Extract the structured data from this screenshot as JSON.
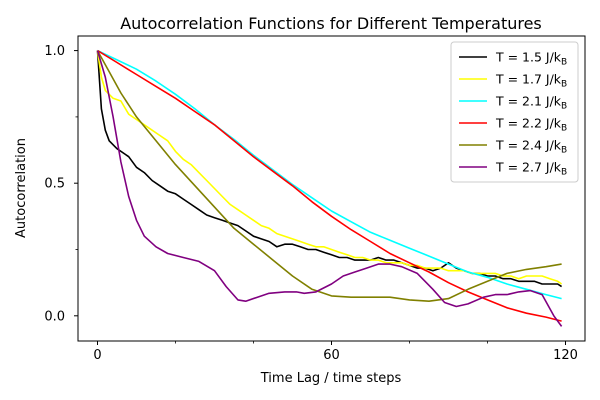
{
  "chart_data": {
    "type": "line",
    "title": "Autocorrelation Functions for Different Temperatures",
    "xlabel": "Time Lag / time steps",
    "ylabel": "Autocorrelation",
    "xlim": [
      -5,
      125
    ],
    "ylim": [
      -0.095,
      1.055
    ],
    "x_ticks": [
      0,
      60,
      120
    ],
    "x_minor_ticks": [
      20,
      40,
      80,
      100
    ],
    "y_ticks": [
      0.0,
      0.5,
      1.0
    ],
    "y_tick_labels": [
      "0.0",
      "0.5",
      "1.0"
    ],
    "y_minor_ticks": [
      0.25,
      0.75
    ],
    "grid": false,
    "legend_position": "top-right",
    "series": [
      {
        "name": "T = 1.5 J/kB",
        "label_main": "T = 1.5 J/k",
        "label_sub": "B",
        "color": "#000000",
        "points": [
          [
            0,
            1.0
          ],
          [
            1,
            0.78
          ],
          [
            2,
            0.7
          ],
          [
            3,
            0.66
          ],
          [
            5,
            0.63
          ],
          [
            7,
            0.61
          ],
          [
            8,
            0.6
          ],
          [
            10,
            0.56
          ],
          [
            12,
            0.54
          ],
          [
            14,
            0.51
          ],
          [
            16,
            0.49
          ],
          [
            18,
            0.47
          ],
          [
            20,
            0.46
          ],
          [
            22,
            0.44
          ],
          [
            24,
            0.42
          ],
          [
            26,
            0.4
          ],
          [
            28,
            0.38
          ],
          [
            30,
            0.37
          ],
          [
            32,
            0.36
          ],
          [
            34,
            0.35
          ],
          [
            36,
            0.34
          ],
          [
            38,
            0.32
          ],
          [
            40,
            0.3
          ],
          [
            42,
            0.29
          ],
          [
            44,
            0.28
          ],
          [
            46,
            0.26
          ],
          [
            48,
            0.27
          ],
          [
            50,
            0.27
          ],
          [
            52,
            0.26
          ],
          [
            54,
            0.25
          ],
          [
            56,
            0.25
          ],
          [
            58,
            0.24
          ],
          [
            60,
            0.23
          ],
          [
            62,
            0.22
          ],
          [
            64,
            0.22
          ],
          [
            66,
            0.21
          ],
          [
            68,
            0.21
          ],
          [
            70,
            0.21
          ],
          [
            72,
            0.22
          ],
          [
            74,
            0.21
          ],
          [
            76,
            0.21
          ],
          [
            78,
            0.2
          ],
          [
            80,
            0.19
          ],
          [
            82,
            0.18
          ],
          [
            84,
            0.18
          ],
          [
            86,
            0.17
          ],
          [
            88,
            0.18
          ],
          [
            90,
            0.2
          ],
          [
            92,
            0.18
          ],
          [
            94,
            0.17
          ],
          [
            96,
            0.16
          ],
          [
            98,
            0.16
          ],
          [
            100,
            0.15
          ],
          [
            102,
            0.15
          ],
          [
            104,
            0.14
          ],
          [
            106,
            0.14
          ],
          [
            108,
            0.13
          ],
          [
            110,
            0.13
          ],
          [
            112,
            0.13
          ],
          [
            114,
            0.12
          ],
          [
            116,
            0.12
          ],
          [
            118,
            0.12
          ],
          [
            119,
            0.11
          ]
        ]
      },
      {
        "name": "T = 1.7 J/kB",
        "label_main": "T = 1.7 J/k",
        "label_sub": "B",
        "color": "#ffff00",
        "points": [
          [
            0,
            1.0
          ],
          [
            1,
            0.9
          ],
          [
            2,
            0.85
          ],
          [
            4,
            0.82
          ],
          [
            6,
            0.81
          ],
          [
            8,
            0.76
          ],
          [
            10,
            0.74
          ],
          [
            12,
            0.72
          ],
          [
            14,
            0.7
          ],
          [
            16,
            0.68
          ],
          [
            18,
            0.66
          ],
          [
            20,
            0.62
          ],
          [
            22,
            0.59
          ],
          [
            24,
            0.57
          ],
          [
            26,
            0.54
          ],
          [
            28,
            0.51
          ],
          [
            30,
            0.48
          ],
          [
            32,
            0.45
          ],
          [
            34,
            0.42
          ],
          [
            36,
            0.4
          ],
          [
            38,
            0.38
          ],
          [
            40,
            0.36
          ],
          [
            42,
            0.34
          ],
          [
            44,
            0.33
          ],
          [
            46,
            0.31
          ],
          [
            48,
            0.3
          ],
          [
            50,
            0.29
          ],
          [
            52,
            0.28
          ],
          [
            54,
            0.27
          ],
          [
            56,
            0.26
          ],
          [
            58,
            0.26
          ],
          [
            60,
            0.25
          ],
          [
            62,
            0.24
          ],
          [
            64,
            0.23
          ],
          [
            66,
            0.22
          ],
          [
            68,
            0.22
          ],
          [
            70,
            0.21
          ],
          [
            72,
            0.21
          ],
          [
            74,
            0.2
          ],
          [
            76,
            0.2
          ],
          [
            78,
            0.2
          ],
          [
            80,
            0.19
          ],
          [
            82,
            0.19
          ],
          [
            84,
            0.18
          ],
          [
            86,
            0.18
          ],
          [
            88,
            0.18
          ],
          [
            90,
            0.17
          ],
          [
            92,
            0.17
          ],
          [
            94,
            0.17
          ],
          [
            96,
            0.16
          ],
          [
            98,
            0.16
          ],
          [
            100,
            0.16
          ],
          [
            102,
            0.16
          ],
          [
            104,
            0.15
          ],
          [
            106,
            0.15
          ],
          [
            108,
            0.14
          ],
          [
            110,
            0.15
          ],
          [
            112,
            0.15
          ],
          [
            114,
            0.15
          ],
          [
            116,
            0.14
          ],
          [
            118,
            0.13
          ],
          [
            119,
            0.12
          ]
        ]
      },
      {
        "name": "T = 2.1 J/kB",
        "label_main": "T = 2.1 J/k",
        "label_sub": "B",
        "color": "#00ffff",
        "points": [
          [
            0,
            1.0
          ],
          [
            5,
            0.965
          ],
          [
            10,
            0.93
          ],
          [
            15,
            0.885
          ],
          [
            20,
            0.835
          ],
          [
            25,
            0.78
          ],
          [
            30,
            0.72
          ],
          [
            35,
            0.665
          ],
          [
            40,
            0.605
          ],
          [
            45,
            0.55
          ],
          [
            50,
            0.495
          ],
          [
            55,
            0.445
          ],
          [
            60,
            0.395
          ],
          [
            65,
            0.355
          ],
          [
            70,
            0.315
          ],
          [
            75,
            0.285
          ],
          [
            80,
            0.255
          ],
          [
            85,
            0.225
          ],
          [
            90,
            0.195
          ],
          [
            95,
            0.165
          ],
          [
            100,
            0.145
          ],
          [
            105,
            0.12
          ],
          [
            110,
            0.1
          ],
          [
            115,
            0.08
          ],
          [
            119,
            0.065
          ]
        ]
      },
      {
        "name": "T = 2.2 J/kB",
        "label_main": "T = 2.2 J/k",
        "label_sub": "B",
        "color": "#ff0000",
        "points": [
          [
            0,
            1.0
          ],
          [
            5,
            0.955
          ],
          [
            10,
            0.91
          ],
          [
            15,
            0.865
          ],
          [
            20,
            0.82
          ],
          [
            25,
            0.77
          ],
          [
            30,
            0.72
          ],
          [
            35,
            0.66
          ],
          [
            40,
            0.6
          ],
          [
            45,
            0.545
          ],
          [
            50,
            0.49
          ],
          [
            55,
            0.43
          ],
          [
            60,
            0.375
          ],
          [
            65,
            0.325
          ],
          [
            70,
            0.28
          ],
          [
            75,
            0.235
          ],
          [
            80,
            0.2
          ],
          [
            85,
            0.165
          ],
          [
            90,
            0.125
          ],
          [
            95,
            0.09
          ],
          [
            100,
            0.06
          ],
          [
            105,
            0.03
          ],
          [
            110,
            0.01
          ],
          [
            115,
            -0.005
          ],
          [
            119,
            -0.02
          ]
        ]
      },
      {
        "name": "T = 2.4 J/kB",
        "label_main": "T = 2.4 J/k",
        "label_sub": "B",
        "color": "#808000",
        "points": [
          [
            0,
            1.0
          ],
          [
            3,
            0.92
          ],
          [
            6,
            0.84
          ],
          [
            10,
            0.75
          ],
          [
            15,
            0.66
          ],
          [
            20,
            0.57
          ],
          [
            25,
            0.49
          ],
          [
            30,
            0.41
          ],
          [
            35,
            0.33
          ],
          [
            40,
            0.27
          ],
          [
            45,
            0.21
          ],
          [
            50,
            0.15
          ],
          [
            55,
            0.1
          ],
          [
            60,
            0.075
          ],
          [
            65,
            0.07
          ],
          [
            70,
            0.07
          ],
          [
            75,
            0.07
          ],
          [
            80,
            0.06
          ],
          [
            85,
            0.055
          ],
          [
            90,
            0.065
          ],
          [
            95,
            0.1
          ],
          [
            100,
            0.13
          ],
          [
            105,
            0.16
          ],
          [
            110,
            0.175
          ],
          [
            115,
            0.185
          ],
          [
            119,
            0.195
          ]
        ]
      },
      {
        "name": "T = 2.7 J/kB",
        "label_main": "T = 2.7 J/k",
        "label_sub": "B",
        "color": "#800080",
        "points": [
          [
            0,
            1.0
          ],
          [
            2,
            0.9
          ],
          [
            4,
            0.75
          ],
          [
            6,
            0.58
          ],
          [
            8,
            0.45
          ],
          [
            10,
            0.36
          ],
          [
            12,
            0.3
          ],
          [
            15,
            0.26
          ],
          [
            18,
            0.235
          ],
          [
            22,
            0.22
          ],
          [
            26,
            0.205
          ],
          [
            30,
            0.17
          ],
          [
            33,
            0.11
          ],
          [
            36,
            0.06
          ],
          [
            38,
            0.055
          ],
          [
            41,
            0.07
          ],
          [
            44,
            0.085
          ],
          [
            48,
            0.09
          ],
          [
            51,
            0.09
          ],
          [
            53,
            0.085
          ],
          [
            56,
            0.09
          ],
          [
            60,
            0.12
          ],
          [
            63,
            0.15
          ],
          [
            66,
            0.165
          ],
          [
            69,
            0.18
          ],
          [
            72,
            0.195
          ],
          [
            75,
            0.195
          ],
          [
            78,
            0.185
          ],
          [
            82,
            0.16
          ],
          [
            86,
            0.1
          ],
          [
            89,
            0.05
          ],
          [
            92,
            0.035
          ],
          [
            95,
            0.045
          ],
          [
            99,
            0.07
          ],
          [
            102,
            0.08
          ],
          [
            105,
            0.08
          ],
          [
            108,
            0.09
          ],
          [
            111,
            0.095
          ],
          [
            114,
            0.08
          ],
          [
            117,
            0.0
          ],
          [
            119,
            -0.04
          ]
        ]
      }
    ]
  }
}
